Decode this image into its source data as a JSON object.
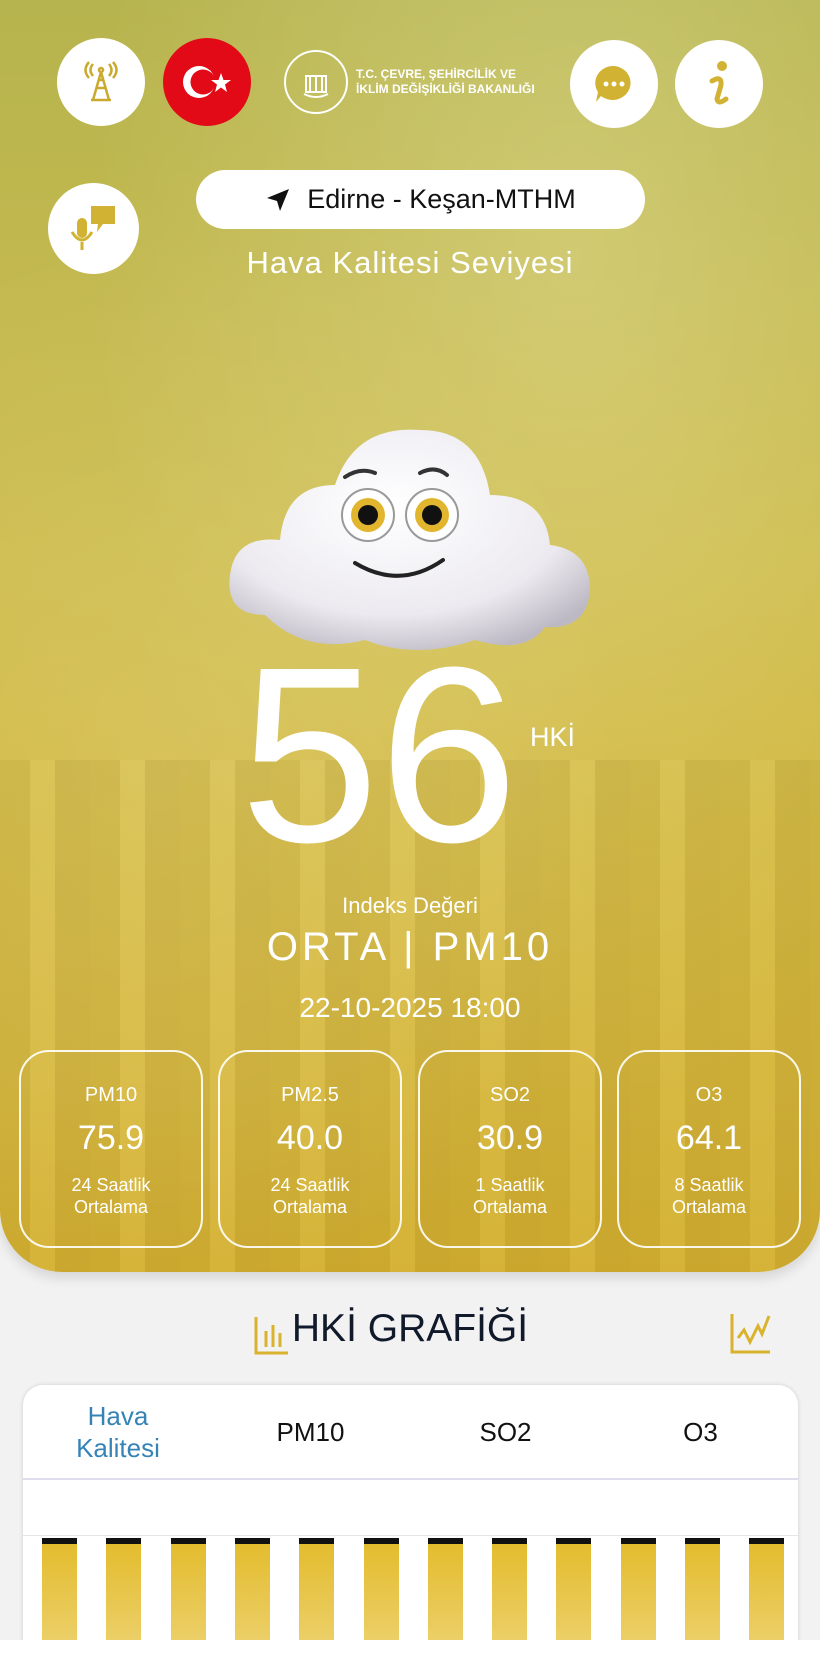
{
  "header": {
    "ministry_logo_text": "T.C. ÇEVRE, ŞEHİRCİLİK VE İKLİM DEĞİŞİKLİĞİ BAKANLIĞI",
    "ministry_line1": "T.C. ÇEVRE, ŞEHİRCİLİK VE",
    "ministry_line2": "İKLİM DEĞİŞİKLİĞİ BAKANLIĞI",
    "icons": [
      "station-tower-icon",
      "turkey-flag-icon",
      "chat-icon",
      "info-icon",
      "voice-assistant-icon"
    ]
  },
  "location": {
    "name": "Edirne - Keşan-MTHM",
    "icon": "navigation-arrow-icon"
  },
  "subtitle": "Hava Kalitesi Seviyesi",
  "index": {
    "value": "56",
    "unit": "HKİ",
    "label": "Indeks Değeri",
    "status": "ORTA | PM10",
    "datetime": "22-10-2025 18:00"
  },
  "pollutants": [
    {
      "name": "PM10",
      "value": "75.9",
      "period1": "24 Saatlik",
      "period2": "Ortalama"
    },
    {
      "name": "PM2.5",
      "value": "40.0",
      "period1": "24 Saatlik",
      "period2": "Ortalama"
    },
    {
      "name": "SO2",
      "value": "30.9",
      "period1": "1 Saatlik",
      "period2": "Ortalama"
    },
    {
      "name": "O3",
      "value": "64.1",
      "period1": "8 Saatlik",
      "period2": "Ortalama"
    }
  ],
  "graph": {
    "title": "HKİ GRAFİĞİ",
    "tabs": [
      {
        "label": "Hava Kalitesi",
        "active": true
      },
      {
        "label": "PM10"
      },
      {
        "label": "SO2"
      },
      {
        "label": "O3"
      }
    ],
    "bar_color": "#e3bc2e",
    "active_tab_color": "#3683b6"
  },
  "colors": {
    "accent": "#d9b32e",
    "flag_red": "#e30a17"
  }
}
